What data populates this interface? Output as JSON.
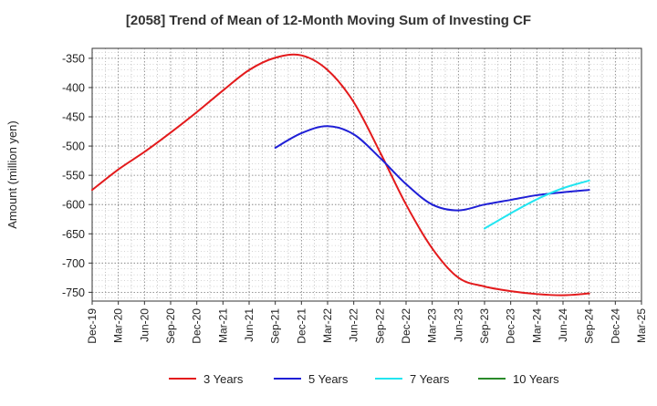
{
  "chart_data": {
    "type": "line",
    "title": "[2058]  Trend of Mean of 12-Month Moving Sum of Investing CF",
    "xlabel": "",
    "ylabel": "Amount (million yen)",
    "ylim": [
      -765,
      -333
    ],
    "yticks": [
      -350,
      -400,
      -450,
      -500,
      -550,
      -600,
      -650,
      -700,
      -750
    ],
    "grid": true,
    "legend_position": "bottom",
    "categories": [
      "Dec-19",
      "Mar-20",
      "Jun-20",
      "Sep-20",
      "Dec-20",
      "Mar-21",
      "Jun-21",
      "Sep-21",
      "Dec-21",
      "Mar-22",
      "Jun-22",
      "Sep-22",
      "Dec-22",
      "Mar-23",
      "Jun-23",
      "Sep-23",
      "Dec-23",
      "Mar-24",
      "Jun-24",
      "Sep-24",
      "Dec-24",
      "Mar-25"
    ],
    "series": [
      {
        "name": "3 Years",
        "color": "#e31a1c",
        "values": [
          -575,
          -540,
          -510,
          -477,
          -442,
          -405,
          -370,
          -349,
          -345,
          -370,
          -425,
          -510,
          -600,
          -675,
          -725,
          -740,
          -748,
          -753,
          -755,
          -752,
          null,
          null
        ]
      },
      {
        "name": "5 Years",
        "color": "#1f1fd6",
        "values": [
          null,
          null,
          null,
          null,
          null,
          null,
          null,
          -503,
          -478,
          -466,
          -480,
          -520,
          -565,
          -600,
          -610,
          -600,
          -592,
          -584,
          -579,
          -575,
          null,
          null
        ]
      },
      {
        "name": "7 Years",
        "color": "#22e5f0",
        "values": [
          null,
          null,
          null,
          null,
          null,
          null,
          null,
          null,
          null,
          null,
          null,
          null,
          null,
          null,
          null,
          -641,
          -615,
          -591,
          -572,
          -559,
          null,
          null
        ]
      },
      {
        "name": "10 Years",
        "color": "#2a8a2a",
        "values": [
          null,
          null,
          null,
          null,
          null,
          null,
          null,
          null,
          null,
          null,
          null,
          null,
          null,
          null,
          null,
          null,
          null,
          null,
          null,
          null,
          null,
          null
        ]
      }
    ]
  }
}
